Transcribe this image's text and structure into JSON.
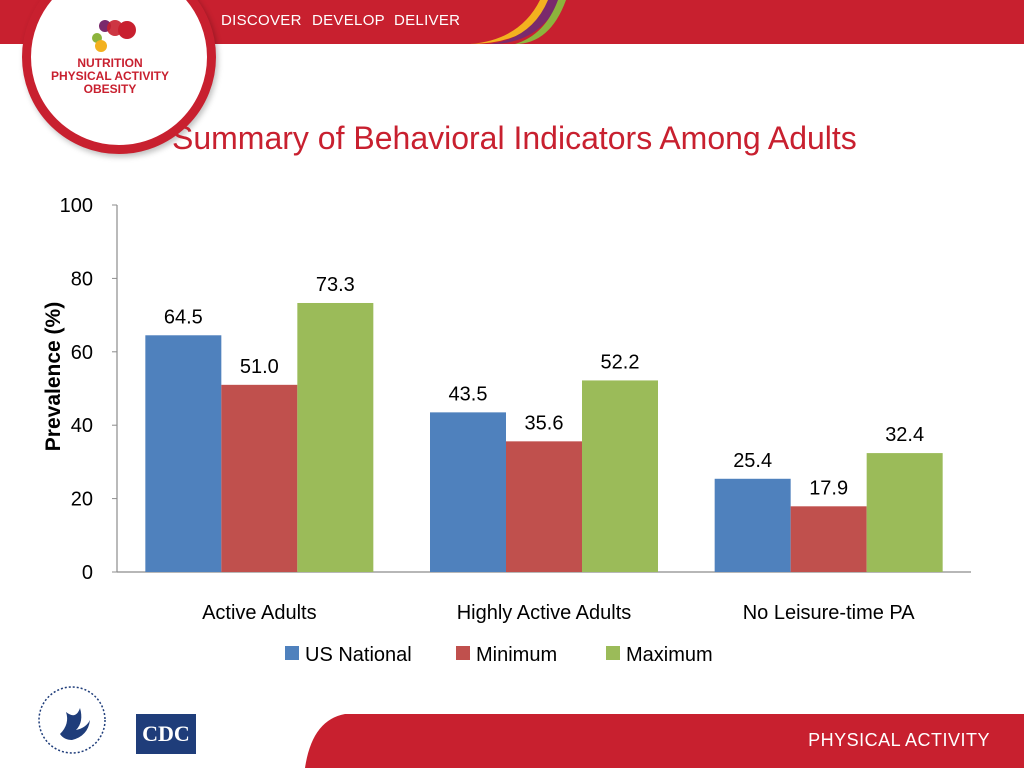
{
  "header": {
    "nav": [
      "DISCOVER",
      "DEVELOP",
      "DELIVER"
    ],
    "logo_lines": [
      "NUTRITION",
      "PHYSICAL ACTIVITY",
      "OBESITY"
    ]
  },
  "title": "Summary of Behavioral Indicators Among Adults",
  "chart_data": {
    "type": "bar",
    "categories": [
      "Active Adults",
      "Highly Active Adults",
      "No Leisure-time PA"
    ],
    "series": [
      {
        "name": "US National",
        "values": [
          64.5,
          43.5,
          25.4
        ],
        "labels": [
          "64.5",
          "43.5",
          "25.4"
        ],
        "color": "#4f81bd"
      },
      {
        "name": "Minimum",
        "values": [
          51.0,
          35.6,
          17.9
        ],
        "labels": [
          "51.0",
          "35.6",
          "17.9"
        ],
        "color": "#c0504d"
      },
      {
        "name": "Maximum",
        "values": [
          73.3,
          52.2,
          32.4
        ],
        "labels": [
          "73.3",
          "52.2",
          "32.4"
        ],
        "color": "#9bbb59"
      }
    ],
    "ylabel": "Prevalence (%)",
    "ylim": [
      0,
      100
    ],
    "yticks": [
      "0",
      "20",
      "40",
      "60",
      "80",
      "100"
    ],
    "legend_position": "bottom",
    "grid": false
  },
  "footer": {
    "label": "PHYSICAL ACTIVITY",
    "cdc_text": "CDC"
  },
  "colors": {
    "brand_red": "#c8202f",
    "white": "#ffffff"
  }
}
